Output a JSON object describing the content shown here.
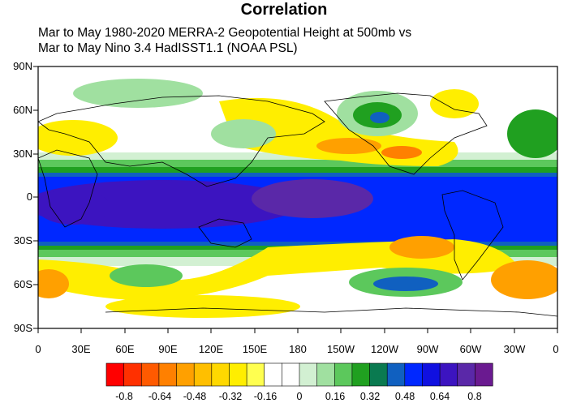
{
  "title": "Correlation",
  "subtitle_line1": "Mar to May 1980-2020 MERRA-2 Geopotential Height at 500mb vs",
  "subtitle_line2": "Mar to May Nino 3.4 HadISST1.1 (NOAA PSL)",
  "y_tick_labels": [
    "90N",
    "60N",
    "30N",
    "0",
    "30S",
    "60S",
    "90S"
  ],
  "x_tick_labels": [
    "0",
    "30E",
    "60E",
    "90E",
    "120E",
    "150E",
    "180",
    "150W",
    "120W",
    "90W",
    "60W",
    "30W",
    "0"
  ],
  "colorbar": {
    "labels": [
      "-0.8",
      "-0.64",
      "-0.48",
      "-0.32",
      "-0.16",
      "0",
      "0.16",
      "0.32",
      "0.48",
      "0.64",
      "0.8"
    ],
    "colors": [
      "#ff0000",
      "#ff3000",
      "#ff5a00",
      "#ff8000",
      "#ffa000",
      "#ffbf00",
      "#ffd800",
      "#ffee00",
      "#ffff50",
      "#ffffff",
      "#ffffff",
      "#d2f0d2",
      "#a0e0a0",
      "#5cc85c",
      "#20a020",
      "#0a7a50",
      "#1060c0",
      "#0028ff",
      "#1010e0",
      "#3c14c0",
      "#5a28a8",
      "#6a1a90"
    ]
  },
  "map": {
    "region": "global",
    "lat_range": [
      -90,
      90
    ],
    "lon_range": [
      0,
      360
    ],
    "variable": "correlation, 500mb geopotential height vs Nino 3.4 SST"
  }
}
